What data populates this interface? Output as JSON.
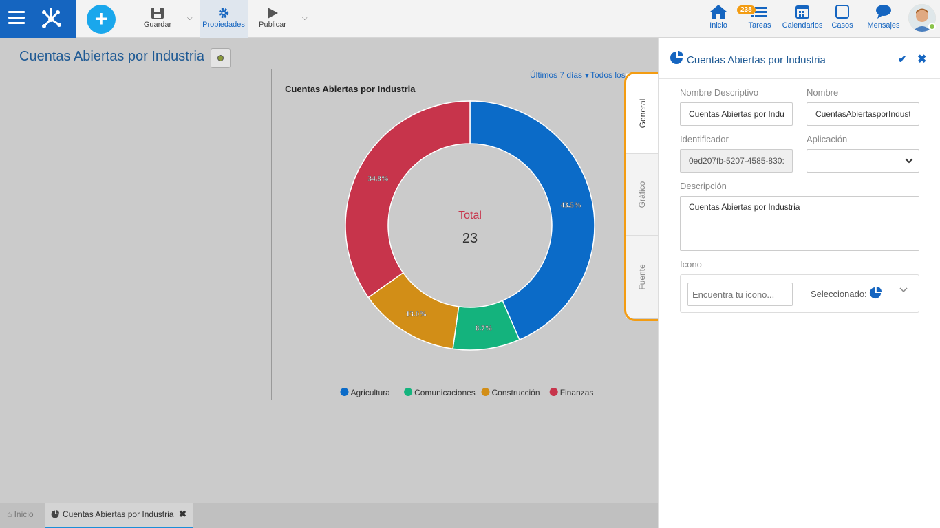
{
  "toolbar": {
    "guardar_label": "Guardar",
    "propiedades_label": "Propiedades",
    "publicar_label": "Publicar",
    "add_label": "+"
  },
  "nav": {
    "inicio": "Inicio",
    "tareas": "Tareas",
    "tareas_badge": "238",
    "calendarios": "Calendarios",
    "casos": "Casos",
    "mensajes": "Mensajes"
  },
  "page": {
    "title": "Cuentas Abiertas por Industria"
  },
  "chart_controls": {
    "range": "Últimos 7 días",
    "todos": "Todos los"
  },
  "side_tabs": {
    "general": "General",
    "grafico": "Gráfico",
    "fuente": "Fuente"
  },
  "props": {
    "title": "Cuentas Abiertas por Industria",
    "nombre_descriptivo_label": "Nombre Descriptivo",
    "nombre_descriptivo_value": "Cuentas Abiertas por Indu",
    "nombre_label": "Nombre",
    "nombre_value": "CuentasAbiertasporIndust",
    "identificador_label": "Identificador",
    "identificador_value": "0ed207fb-5207-4585-830:",
    "aplicacion_label": "Aplicación",
    "aplicacion_value": "",
    "descripcion_label": "Descripción",
    "descripcion_value": "Cuentas Abiertas por Industria",
    "icono_label": "Icono",
    "icono_placeholder": "Encuentra tu icono...",
    "seleccionado_label": "Seleccionado:"
  },
  "bottom_tabs": {
    "home": "Inicio",
    "chart": "Cuentas Abiertas por Industria"
  },
  "colors": {
    "primary": "#1565c0",
    "highlight": "#f39c12"
  },
  "chart_data": {
    "type": "pie",
    "title": "Cuentas Abiertas por Industria",
    "center_label": "Total",
    "center_value": "23",
    "legend_position": "bottom",
    "slices": [
      {
        "name": "Agricultura",
        "value": 43.5,
        "label": "43.5%",
        "color": "#0b6bc8"
      },
      {
        "name": "Comunicaciones",
        "value": 8.7,
        "label": "8.7%",
        "color": "#14b37d"
      },
      {
        "name": "Construcción",
        "value": 13.0,
        "label": "13.0%",
        "color": "#d28e17"
      },
      {
        "name": "Finanzas",
        "value": 34.8,
        "label": "34.8%",
        "color": "#c7344b"
      }
    ]
  }
}
